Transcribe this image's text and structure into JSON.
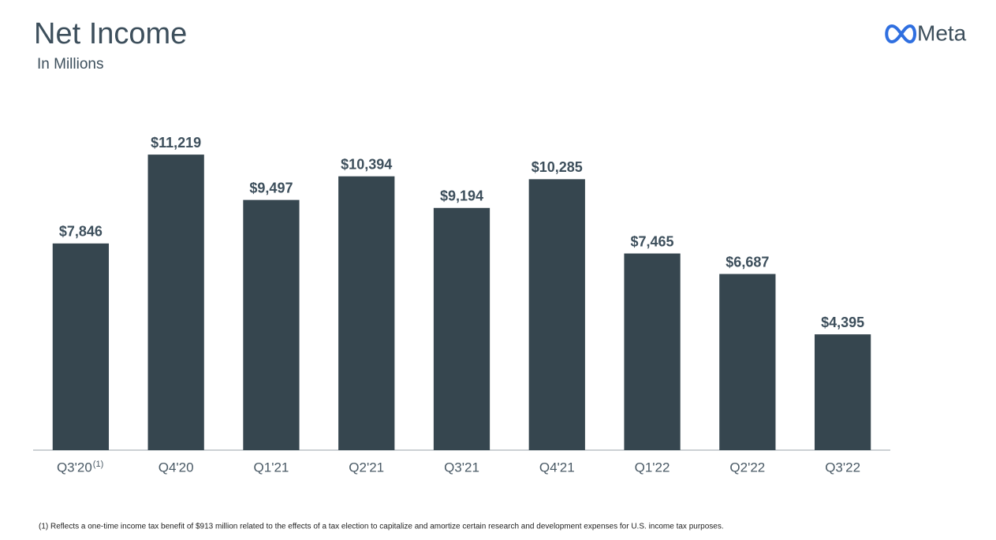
{
  "logo": "Meta",
  "chart_data": {
    "type": "bar",
    "title": "Net Income",
    "subtitle": "In Millions",
    "categories": [
      "Q3'20",
      "Q4'20",
      "Q1'21",
      "Q2'21",
      "Q3'21",
      "Q4'21",
      "Q1'22",
      "Q2'22",
      "Q3'22"
    ],
    "category_marks": [
      "(1)",
      null,
      null,
      null,
      null,
      null,
      null,
      null,
      null
    ],
    "values": [
      7846,
      11219,
      9497,
      10394,
      9194,
      10285,
      7465,
      6687,
      4395
    ],
    "value_labels": [
      "$7,846",
      "$11,219",
      "$9,497",
      "$10,394",
      "$9,194",
      "$10,285",
      "$7,465",
      "$6,687",
      "$4,395"
    ],
    "color": "#36464f",
    "ylim": [
      0,
      12000
    ],
    "footnote": "(1) Reflects a one-time income tax benefit of $913 million related to the effects of a tax election to capitalize and amortize certain research and development expenses for U.S. income tax purposes."
  }
}
